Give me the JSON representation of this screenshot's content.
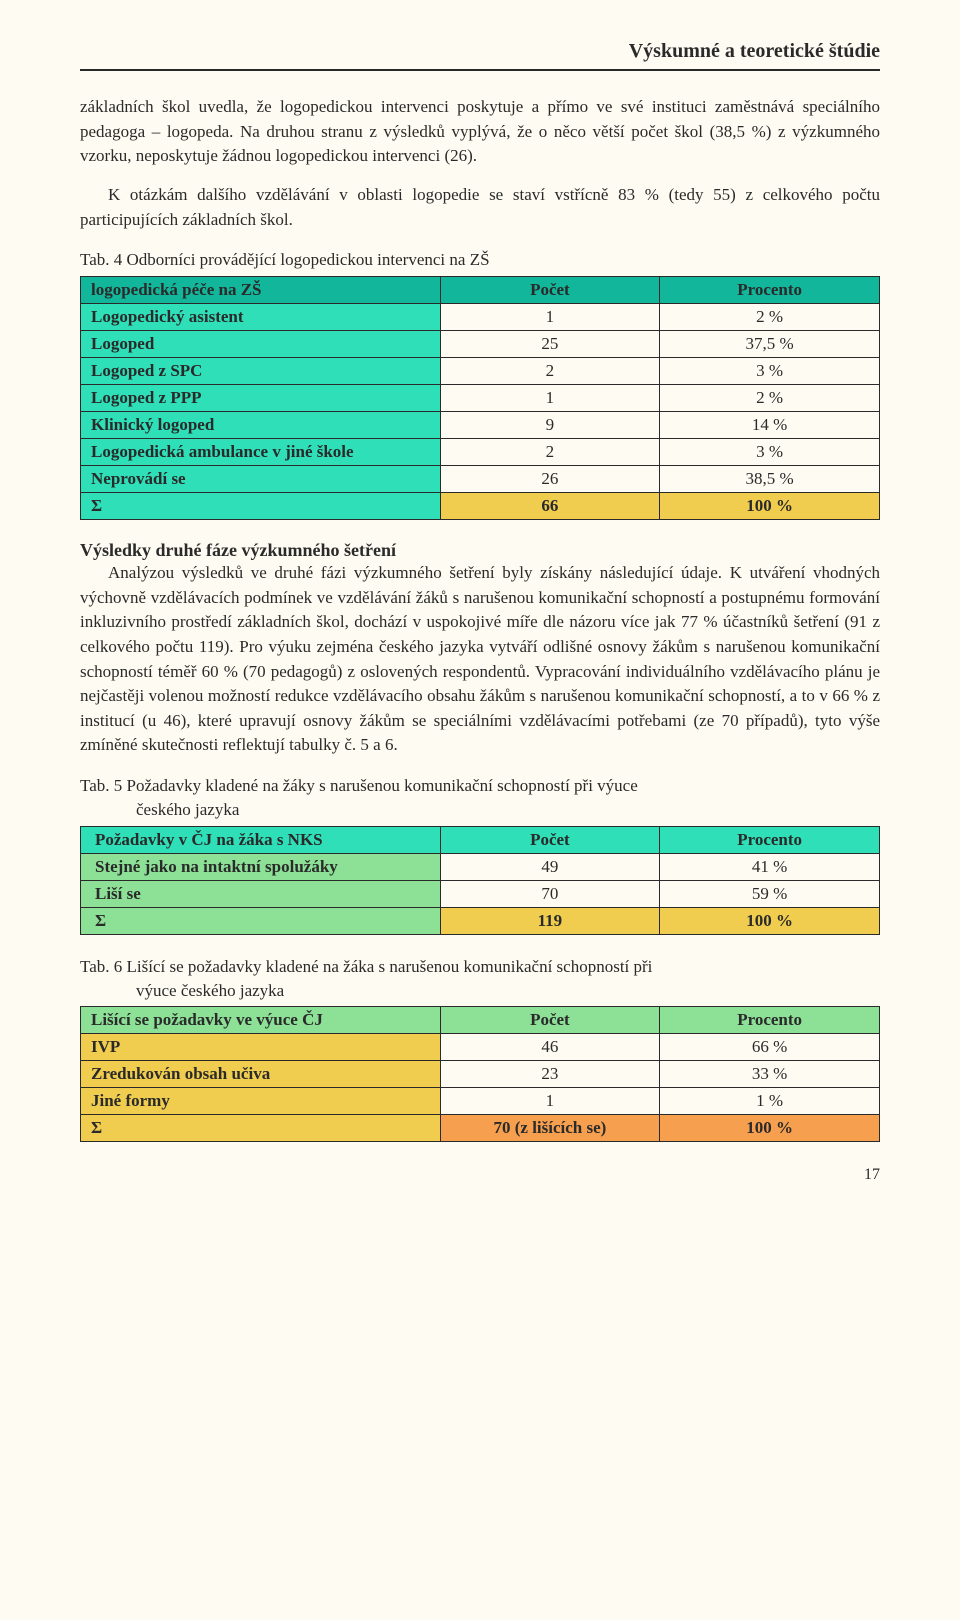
{
  "header": "Výskumné a teoretické štúdie",
  "paragraph1": "základních škol uvedla, že logopedickou intervenci poskytuje a přímo ve své instituci zaměstnává speciálního pedagoga – logopeda. Na druhou stranu z výsledků vyplývá, že o něco větší počet škol (38,5 %) z výzkumného vzorku, neposkytuje žádnou logopedickou intervenci (26).",
  "paragraph2": "K otázkám dalšího vzdělávání v oblasti logopedie se staví vstřícně 83 % (tedy 55) z celkového počtu participujících základních škol.",
  "table4": {
    "caption": "Tab. 4  Odborníci provádějící logopedickou intervenci na ZŠ",
    "header_color": "#12b69a",
    "row_color": "#2edfb8",
    "sum_color": "#f0cd4f",
    "columns": [
      "logopedická péče na ZŠ",
      "Počet",
      "Procento"
    ],
    "rows": [
      [
        "Logopedický asistent",
        "1",
        "2 %"
      ],
      [
        "Logoped",
        "25",
        "37,5 %"
      ],
      [
        "Logoped z SPC",
        "2",
        "3 %"
      ],
      [
        "Logoped z PPP",
        "1",
        "2 %"
      ],
      [
        "Klinický logoped",
        "9",
        "14 %"
      ],
      [
        "Logopedická ambulance v jiné škole",
        "2",
        "3 %"
      ],
      [
        "Neprovádí se",
        "26",
        "38,5 %"
      ]
    ],
    "sum_row": [
      "Σ",
      "66",
      "100 %"
    ]
  },
  "section2_title": "Výsledky druhé fáze výzkumného šetření",
  "paragraph3": "Analýzou výsledků ve druhé fázi výzkumného šetření byly získány následující údaje. K utváření vhodných výchovně vzdělávacích podmínek ve vzdělávání žáků s narušenou komunikační schopností a postupnému formování inkluzivního prostředí základních škol, dochází v uspokojivé míře dle názoru více jak 77  % účastníků šetření (91 z celkového počtu 119). Pro výuku zejména českého jazyka vytváří odlišné osnovy žákům s narušenou komunikační schopností téměř 60 % (70 pedagogů) z oslovených respondentů. Vypracování individuálního vzdělávacího plánu je nejčastěji volenou možností redukce vzdělávacího obsahu žákům s narušenou komunikační schopností, a to v 66 % z institucí (u 46), které upravují osnovy žákům se speciálními vzdělávacími potřebami (ze 70 případů), tyto výše zmíněné skutečnosti reflektují tabulky č. 5 a 6.",
  "table5": {
    "caption_main": "Tab. 5  Požadavky kladené na žáky s narušenou komunikační schopností při výuce",
    "caption_sub": "českého jazyka",
    "header_color": "#2edfb8",
    "row_color": "#8ce196",
    "sum_color": "#f0cd4f",
    "columns": [
      "Požadavky v ČJ na žáka s NKS",
      "Počet",
      "Procento"
    ],
    "rows": [
      [
        "Stejné jako na intaktní spolužáky",
        "49",
        "41 %"
      ],
      [
        "Liší se",
        "70",
        "59 %"
      ]
    ],
    "sum_row": [
      "Σ",
      "119",
      "100 %"
    ]
  },
  "table6": {
    "caption_main": "Tab. 6  Lišící se požadavky kladené na žáka s narušenou komunikační schopností při",
    "caption_sub": "výuce českého jazyka",
    "header_color": "#8ce196",
    "row_color": "#f0cd4f",
    "sum_color": "#f69f4f",
    "columns": [
      "Lišící se požadavky ve výuce ČJ",
      "Počet",
      "Procento"
    ],
    "rows": [
      [
        "IVP",
        "46",
        "66 %"
      ],
      [
        "Zredukován obsah učiva",
        "23",
        "33 %"
      ],
      [
        "Jiné formy",
        "1",
        "1  %"
      ]
    ],
    "sum_row": [
      "Σ",
      "70 (z lišících se)",
      "100 %"
    ]
  },
  "page_number": "17"
}
